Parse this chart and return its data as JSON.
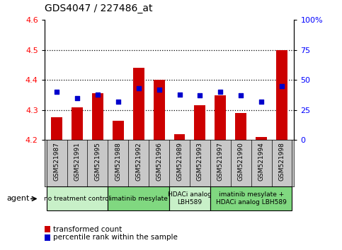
{
  "title": "GDS4047 / 227486_at",
  "samples": [
    "GSM521987",
    "GSM521991",
    "GSM521995",
    "GSM521988",
    "GSM521992",
    "GSM521996",
    "GSM521989",
    "GSM521993",
    "GSM521997",
    "GSM521990",
    "GSM521994",
    "GSM521998"
  ],
  "transformed_count": [
    4.275,
    4.31,
    4.355,
    4.265,
    4.44,
    4.4,
    4.22,
    4.315,
    4.35,
    4.29,
    4.21,
    4.5
  ],
  "percentile_rank": [
    40,
    35,
    38,
    32,
    43,
    42,
    38,
    37,
    40,
    37,
    32,
    45
  ],
  "ylim_left": [
    4.2,
    4.6
  ],
  "ylim_right": [
    0,
    100
  ],
  "yticks_left": [
    4.2,
    4.3,
    4.4,
    4.5,
    4.6
  ],
  "yticks_right": [
    0,
    25,
    50,
    75,
    100
  ],
  "hlines": [
    4.3,
    4.4,
    4.5
  ],
  "agent_groups": [
    {
      "label": "no treatment control",
      "start": 0,
      "end": 3,
      "color": "#c8f0c8"
    },
    {
      "label": "imatinib mesylate",
      "start": 3,
      "end": 6,
      "color": "#80d880"
    },
    {
      "label": "HDACi analog\nLBH589",
      "start": 6,
      "end": 8,
      "color": "#c8f0c8"
    },
    {
      "label": "imatinib mesylate +\nHDACi analog LBH589",
      "start": 8,
      "end": 12,
      "color": "#80d880"
    }
  ],
  "bar_color": "#cc0000",
  "dot_color": "#0000cc",
  "bar_width": 0.55,
  "background_color": "#ffffff",
  "plot_bg_color": "#ffffff",
  "gray_bg": "#c8c8c8",
  "legend_items": [
    "transformed count",
    "percentile rank within the sample"
  ],
  "agent_label": "agent"
}
